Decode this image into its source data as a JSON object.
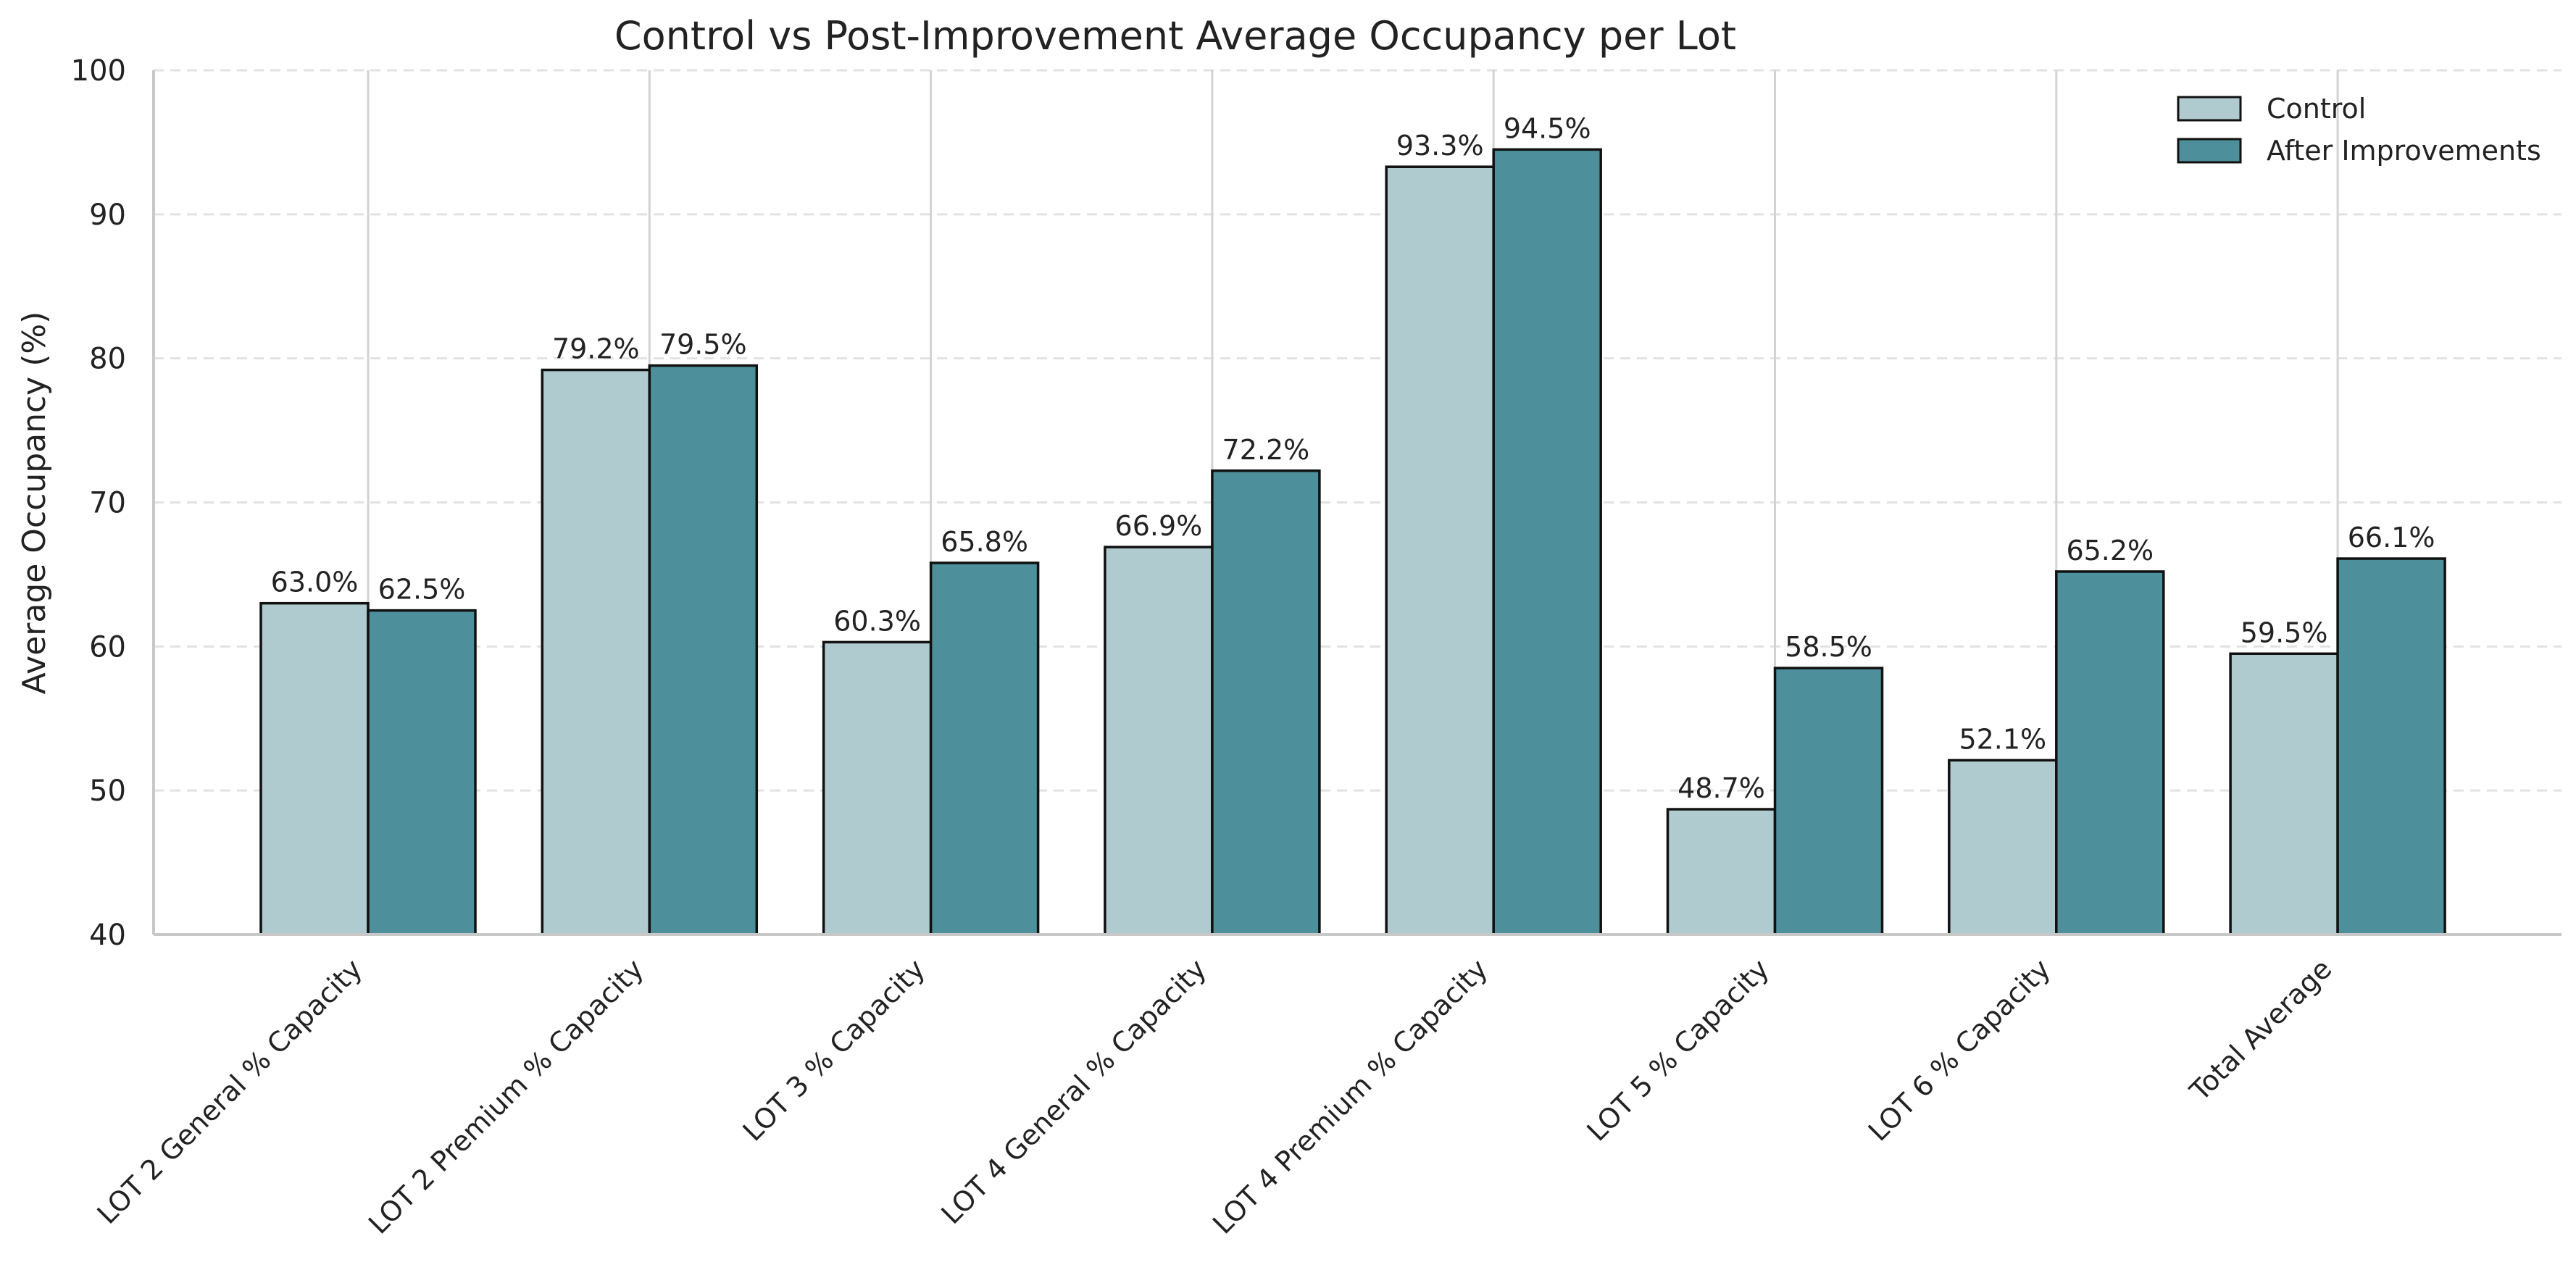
{
  "chart_data": {
    "type": "bar",
    "title": "Control vs Post-Improvement Average Occupancy per Lot",
    "xlabel": "",
    "ylabel": "Average Occupancy (%)",
    "ylim": [
      40,
      100
    ],
    "yticks": [
      40,
      50,
      60,
      70,
      80,
      90,
      100
    ],
    "grid": {
      "y": true,
      "y_style": "dashed",
      "x": true,
      "x_style": "solid"
    },
    "legend_position": "top-right",
    "categories": [
      "LOT 2 General % Capacity",
      "LOT 2 Premium % Capacity",
      "LOT 3 % Capacity",
      "LOT 4 General % Capacity",
      "LOT 4 Premium % Capacity",
      "LOT 5 % Capacity",
      "LOT 6 % Capacity",
      "Total Average"
    ],
    "series": [
      {
        "name": "Control",
        "color": "#b0cbcf",
        "values": [
          63.0,
          79.2,
          60.3,
          66.9,
          93.3,
          48.7,
          52.1,
          59.5
        ],
        "labels": [
          "63.0%",
          "79.2%",
          "60.3%",
          "66.9%",
          "93.3%",
          "48.7%",
          "52.1%",
          "59.5%"
        ]
      },
      {
        "name": "After Improvements",
        "color": "#4d8f9b",
        "values": [
          62.5,
          79.5,
          65.8,
          72.2,
          94.5,
          58.5,
          65.2,
          66.1
        ],
        "labels": [
          "62.5%",
          "79.5%",
          "65.8%",
          "72.2%",
          "94.5%",
          "58.5%",
          "65.2%",
          "66.1%"
        ]
      }
    ]
  }
}
